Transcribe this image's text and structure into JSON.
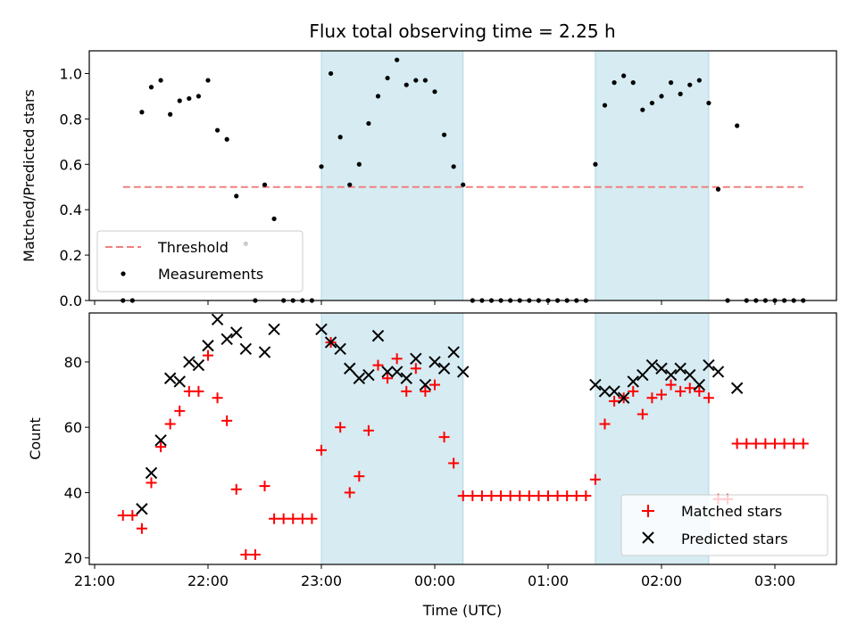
{
  "chart_data": {
    "title": "Flux total observing time = 2.25 h",
    "xlabel": "Time (UTC)",
    "x_ticks": [
      "21:00",
      "22:00",
      "23:00",
      "00:00",
      "01:00",
      "02:00",
      "03:00"
    ],
    "shaded_intervals": [
      [
        "23:00",
        "00:15"
      ],
      [
        "01:25",
        "02:25"
      ]
    ],
    "shade_color": "#add8e6",
    "top": {
      "type": "scatter",
      "ylabel": "Matched/Predicted stars",
      "ylim": [
        0,
        1.1
      ],
      "y_ticks": [
        "0.0",
        "0.2",
        "0.4",
        "0.6",
        "0.8",
        "1.0"
      ],
      "threshold": {
        "name": "Threshold",
        "value": 0.5,
        "x_range": [
          "21:15",
          "03:15"
        ],
        "color": "#f08080"
      },
      "measurements": {
        "name": "Measurements",
        "color": "#000000",
        "points": [
          [
            "21:15",
            0.0
          ],
          [
            "21:20",
            0.0
          ],
          [
            "21:25",
            0.83
          ],
          [
            "21:30",
            0.94
          ],
          [
            "21:35",
            0.97
          ],
          [
            "21:40",
            0.82
          ],
          [
            "21:45",
            0.88
          ],
          [
            "21:50",
            0.89
          ],
          [
            "21:55",
            0.9
          ],
          [
            "22:00",
            0.97
          ],
          [
            "22:05",
            0.75
          ],
          [
            "22:10",
            0.71
          ],
          [
            "22:15",
            0.46
          ],
          [
            "22:20",
            0.25
          ],
          [
            "22:25",
            0.0
          ],
          [
            "22:30",
            0.51
          ],
          [
            "22:35",
            0.36
          ],
          [
            "22:40",
            0.0
          ],
          [
            "22:45",
            0.0
          ],
          [
            "22:50",
            0.0
          ],
          [
            "22:55",
            0.0
          ],
          [
            "23:00",
            0.59
          ],
          [
            "23:05",
            1.0
          ],
          [
            "23:10",
            0.72
          ],
          [
            "23:15",
            0.51
          ],
          [
            "23:20",
            0.6
          ],
          [
            "23:25",
            0.78
          ],
          [
            "23:30",
            0.9
          ],
          [
            "23:35",
            0.98
          ],
          [
            "23:40",
            1.06
          ],
          [
            "23:45",
            0.95
          ],
          [
            "23:50",
            0.97
          ],
          [
            "23:55",
            0.97
          ],
          [
            "00:00",
            0.92
          ],
          [
            "00:05",
            0.73
          ],
          [
            "00:10",
            0.59
          ],
          [
            "00:15",
            0.51
          ],
          [
            "00:20",
            0.0
          ],
          [
            "00:25",
            0.0
          ],
          [
            "00:30",
            0.0
          ],
          [
            "00:35",
            0.0
          ],
          [
            "00:40",
            0.0
          ],
          [
            "00:45",
            0.0
          ],
          [
            "00:50",
            0.0
          ],
          [
            "00:55",
            0.0
          ],
          [
            "01:00",
            0.0
          ],
          [
            "01:05",
            0.0
          ],
          [
            "01:10",
            0.0
          ],
          [
            "01:15",
            0.0
          ],
          [
            "01:20",
            0.0
          ],
          [
            "01:25",
            0.6
          ],
          [
            "01:30",
            0.86
          ],
          [
            "01:35",
            0.96
          ],
          [
            "01:40",
            0.99
          ],
          [
            "01:45",
            0.96
          ],
          [
            "01:50",
            0.84
          ],
          [
            "01:55",
            0.87
          ],
          [
            "02:00",
            0.9
          ],
          [
            "02:05",
            0.96
          ],
          [
            "02:10",
            0.91
          ],
          [
            "02:15",
            0.95
          ],
          [
            "02:20",
            0.97
          ],
          [
            "02:25",
            0.87
          ],
          [
            "02:30",
            0.49
          ],
          [
            "02:35",
            0.0
          ],
          [
            "02:40",
            0.77
          ],
          [
            "02:45",
            0.0
          ],
          [
            "02:50",
            0.0
          ],
          [
            "02:55",
            0.0
          ],
          [
            "03:00",
            0.0
          ],
          [
            "03:05",
            0.0
          ],
          [
            "03:10",
            0.0
          ],
          [
            "03:15",
            0.0
          ]
        ]
      },
      "legend_location": "lower-left"
    },
    "bottom": {
      "type": "scatter",
      "ylabel": "Count",
      "ylim": [
        18,
        95
      ],
      "y_ticks": [
        "20",
        "40",
        "60",
        "80"
      ],
      "series": [
        {
          "name": "Matched stars",
          "marker": "plus",
          "color": "#ff0000",
          "points": [
            [
              "21:15",
              33
            ],
            [
              "21:20",
              33
            ],
            [
              "21:25",
              29
            ],
            [
              "21:30",
              43
            ],
            [
              "21:35",
              54
            ],
            [
              "21:40",
              61
            ],
            [
              "21:45",
              65
            ],
            [
              "21:50",
              71
            ],
            [
              "21:55",
              71
            ],
            [
              "22:00",
              82
            ],
            [
              "22:05",
              69
            ],
            [
              "22:10",
              62
            ],
            [
              "22:15",
              41
            ],
            [
              "22:20",
              21
            ],
            [
              "22:25",
              21
            ],
            [
              "22:30",
              42
            ],
            [
              "22:35",
              32
            ],
            [
              "22:40",
              32
            ],
            [
              "22:45",
              32
            ],
            [
              "22:50",
              32
            ],
            [
              "22:55",
              32
            ],
            [
              "23:00",
              53
            ],
            [
              "23:05",
              86
            ],
            [
              "23:10",
              60
            ],
            [
              "23:15",
              40
            ],
            [
              "23:20",
              45
            ],
            [
              "23:25",
              59
            ],
            [
              "23:30",
              79
            ],
            [
              "23:35",
              75
            ],
            [
              "23:40",
              81
            ],
            [
              "23:45",
              71
            ],
            [
              "23:50",
              78
            ],
            [
              "23:55",
              71
            ],
            [
              "00:00",
              73
            ],
            [
              "00:05",
              57
            ],
            [
              "00:10",
              49
            ],
            [
              "00:15",
              39
            ],
            [
              "00:20",
              39
            ],
            [
              "00:25",
              39
            ],
            [
              "00:30",
              39
            ],
            [
              "00:35",
              39
            ],
            [
              "00:40",
              39
            ],
            [
              "00:45",
              39
            ],
            [
              "00:50",
              39
            ],
            [
              "00:55",
              39
            ],
            [
              "01:00",
              39
            ],
            [
              "01:05",
              39
            ],
            [
              "01:10",
              39
            ],
            [
              "01:15",
              39
            ],
            [
              "01:20",
              39
            ],
            [
              "01:25",
              44
            ],
            [
              "01:30",
              61
            ],
            [
              "01:35",
              68
            ],
            [
              "01:40",
              69
            ],
            [
              "01:45",
              71
            ],
            [
              "01:50",
              64
            ],
            [
              "01:55",
              69
            ],
            [
              "02:00",
              70
            ],
            [
              "02:05",
              73
            ],
            [
              "02:10",
              71
            ],
            [
              "02:15",
              72
            ],
            [
              "02:20",
              71
            ],
            [
              "02:25",
              69
            ],
            [
              "02:30",
              38
            ],
            [
              "02:35",
              38
            ],
            [
              "02:40",
              55
            ],
            [
              "02:45",
              55
            ],
            [
              "02:50",
              55
            ],
            [
              "02:55",
              55
            ],
            [
              "03:00",
              55
            ],
            [
              "03:05",
              55
            ],
            [
              "03:10",
              55
            ],
            [
              "03:15",
              55
            ]
          ]
        },
        {
          "name": "Predicted stars",
          "marker": "x",
          "color": "#000000",
          "points": [
            [
              "21:25",
              35
            ],
            [
              "21:30",
              46
            ],
            [
              "21:35",
              56
            ],
            [
              "21:40",
              75
            ],
            [
              "21:45",
              74
            ],
            [
              "21:50",
              80
            ],
            [
              "21:55",
              79
            ],
            [
              "22:00",
              85
            ],
            [
              "22:05",
              93
            ],
            [
              "22:10",
              87
            ],
            [
              "22:15",
              89
            ],
            [
              "22:20",
              84
            ],
            [
              "22:30",
              83
            ],
            [
              "22:35",
              90
            ],
            [
              "23:00",
              90
            ],
            [
              "23:05",
              86
            ],
            [
              "23:10",
              84
            ],
            [
              "23:15",
              78
            ],
            [
              "23:20",
              75
            ],
            [
              "23:25",
              76
            ],
            [
              "23:30",
              88
            ],
            [
              "23:35",
              77
            ],
            [
              "23:40",
              77
            ],
            [
              "23:45",
              75
            ],
            [
              "23:50",
              81
            ],
            [
              "23:55",
              73
            ],
            [
              "00:00",
              80
            ],
            [
              "00:05",
              78
            ],
            [
              "00:10",
              83
            ],
            [
              "00:15",
              77
            ],
            [
              "01:25",
              73
            ],
            [
              "01:30",
              71
            ],
            [
              "01:35",
              71
            ],
            [
              "01:40",
              69
            ],
            [
              "01:45",
              74
            ],
            [
              "01:50",
              76
            ],
            [
              "01:55",
              79
            ],
            [
              "02:00",
              78
            ],
            [
              "02:05",
              76
            ],
            [
              "02:10",
              78
            ],
            [
              "02:15",
              76
            ],
            [
              "02:20",
              73
            ],
            [
              "02:25",
              79
            ],
            [
              "02:30",
              77
            ],
            [
              "02:40",
              72
            ]
          ]
        }
      ],
      "legend_location": "lower-right"
    }
  }
}
